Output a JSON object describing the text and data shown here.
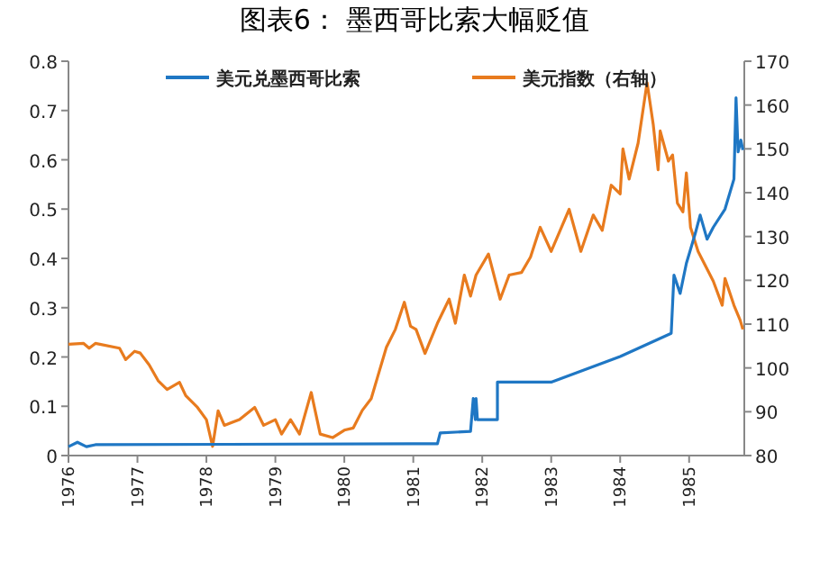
{
  "chart_data": {
    "type": "line",
    "title": "图表6：   墨西哥比索大幅贬值",
    "legend": "top",
    "xlim": [
      1976,
      1985.8
    ],
    "xticks": [
      1976,
      1977,
      1978,
      1979,
      1980,
      1981,
      1982,
      1983,
      1984,
      1985
    ],
    "ylim": [
      0,
      0.8
    ],
    "yticks": [
      0,
      0.1,
      0.2,
      0.3,
      0.4,
      0.5,
      0.6,
      0.7,
      0.8
    ],
    "y2lim": [
      80,
      170
    ],
    "y2ticks": [
      80,
      90,
      100,
      110,
      120,
      130,
      140,
      150,
      160,
      170
    ],
    "series": [
      {
        "name": "美元兑墨西哥比索",
        "color": "#1f77c4",
        "x": [
          1976.0,
          1976.13,
          1976.26,
          1976.39,
          1981.0,
          1981.35,
          1981.39,
          1981.83,
          1981.87,
          1981.9,
          1981.91,
          1981.93,
          1982.22,
          1982.22,
          1983.0,
          1984.0,
          1984.74,
          1984.78,
          1984.87,
          1984.96,
          1985.09,
          1985.16,
          1985.26,
          1985.35,
          1985.52,
          1985.65,
          1985.68,
          1985.71,
          1985.75,
          1985.78
        ],
        "values": [
          0.018,
          0.027,
          0.018,
          0.022,
          0.024,
          0.024,
          0.046,
          0.049,
          0.116,
          0.073,
          0.116,
          0.073,
          0.073,
          0.149,
          0.149,
          0.201,
          0.248,
          0.366,
          0.329,
          0.39,
          0.451,
          0.488,
          0.439,
          0.463,
          0.5,
          0.561,
          0.726,
          0.616,
          0.64,
          0.62
        ]
      },
      {
        "name": "美元指数（右轴）",
        "color": "#e87b1e",
        "axis": "y2",
        "x": [
          1976.0,
          1976.22,
          1976.3,
          1976.39,
          1976.74,
          1976.83,
          1976.96,
          1977.04,
          1977.17,
          1977.3,
          1977.43,
          1977.61,
          1977.7,
          1977.87,
          1978.0,
          1978.09,
          1978.17,
          1978.26,
          1978.48,
          1978.7,
          1978.83,
          1979.0,
          1979.09,
          1979.22,
          1979.35,
          1979.52,
          1979.65,
          1979.83,
          1980.0,
          1980.13,
          1980.26,
          1980.39,
          1980.48,
          1980.61,
          1980.74,
          1980.87,
          1980.96,
          1981.04,
          1981.17,
          1981.35,
          1981.52,
          1981.61,
          1981.74,
          1981.83,
          1981.91,
          1982.09,
          1982.26,
          1982.39,
          1982.57,
          1982.7,
          1982.84,
          1983.0,
          1983.26,
          1983.43,
          1983.61,
          1983.74,
          1983.87,
          1984.0,
          1984.04,
          1984.13,
          1984.26,
          1984.39,
          1984.48,
          1984.55,
          1984.58,
          1984.7,
          1984.76,
          1984.83,
          1984.91,
          1984.96,
          1985.02,
          1985.13,
          1985.35,
          1985.48,
          1985.52,
          1985.65,
          1985.74,
          1985.78
        ],
        "values": [
          105.4,
          105.6,
          104.5,
          105.6,
          104.5,
          101.9,
          103.8,
          103.4,
          100.7,
          97.1,
          95.1,
          96.7,
          93.7,
          91.0,
          88.2,
          82.1,
          90.2,
          86.9,
          88.2,
          91.0,
          86.9,
          88.2,
          84.9,
          88.2,
          84.9,
          94.4,
          84.9,
          84.1,
          85.8,
          86.3,
          90.3,
          93.0,
          97.8,
          104.7,
          108.8,
          115.0,
          109.5,
          108.8,
          103.3,
          110.2,
          115.7,
          110.2,
          121.2,
          116.4,
          121.2,
          126.0,
          115.7,
          121.2,
          121.8,
          125.3,
          132.1,
          126.6,
          136.2,
          126.6,
          134.9,
          131.4,
          141.7,
          139.7,
          150.0,
          143.1,
          151.3,
          165.1,
          155.5,
          145.2,
          154.1,
          147.2,
          148.6,
          137.6,
          135.6,
          144.5,
          132.1,
          126.6,
          119.8,
          114.3,
          120.4,
          114.3,
          110.9,
          108.8
        ]
      }
    ]
  }
}
